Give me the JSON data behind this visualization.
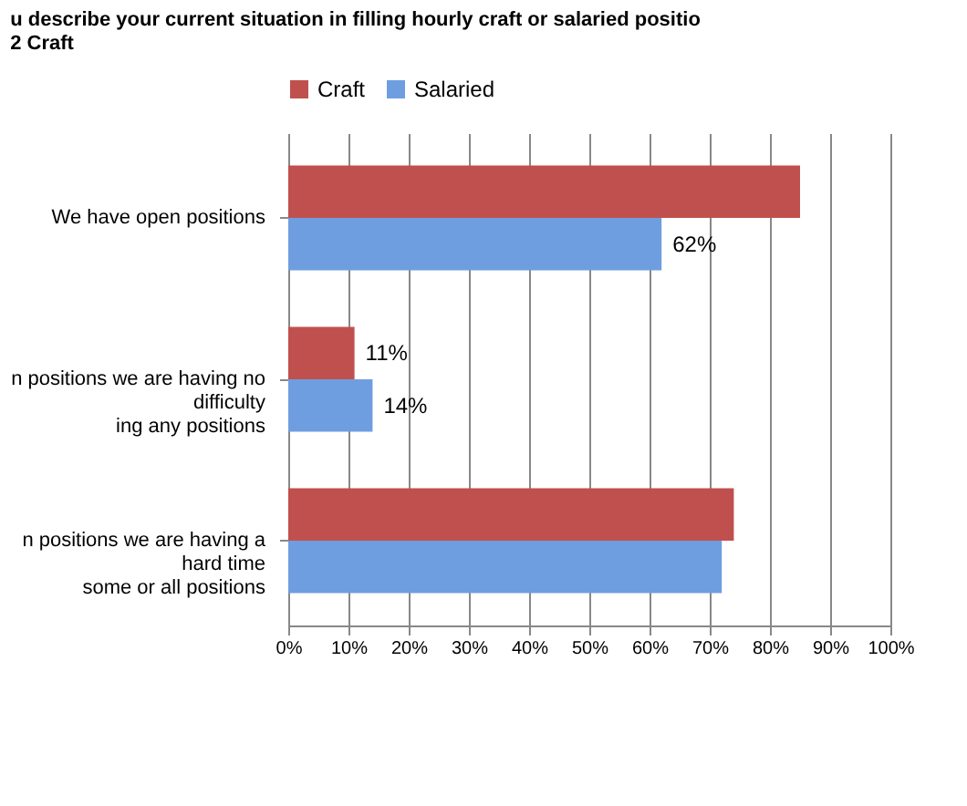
{
  "chart_data": {
    "type": "bar",
    "orientation": "horizontal",
    "title": "u describe your current situation in filling hourly craft or salaried positio\n2 Craft",
    "categories": [
      "We have open positions",
      "n positions we are having no difficulty\ning any positions",
      "n positions we are having a hard time\nsome or all positions"
    ],
    "series": [
      {
        "name": "Craft",
        "color": "#c0504d",
        "values": [
          85,
          11,
          74
        ],
        "value_labels": [
          null,
          "11%",
          null
        ]
      },
      {
        "name": "Salaried",
        "color": "#6f9ee0",
        "values": [
          62,
          14,
          72
        ],
        "value_labels": [
          "62%",
          "14%",
          null
        ]
      }
    ],
    "xlim": [
      0,
      100
    ],
    "xticks": [
      {
        "value": 0,
        "label": "0%"
      },
      {
        "value": 10,
        "label": "10%"
      },
      {
        "value": 20,
        "label": "20%"
      },
      {
        "value": 30,
        "label": "30%"
      },
      {
        "value": 40,
        "label": "40%"
      },
      {
        "value": 50,
        "label": "50%"
      },
      {
        "value": 60,
        "label": "60%"
      },
      {
        "value": 70,
        "label": "70%"
      },
      {
        "value": 80,
        "label": "80%"
      },
      {
        "value": 90,
        "label": "90%"
      },
      {
        "value": 100,
        "label": "100%"
      }
    ],
    "grid": "x",
    "legend": "top"
  }
}
